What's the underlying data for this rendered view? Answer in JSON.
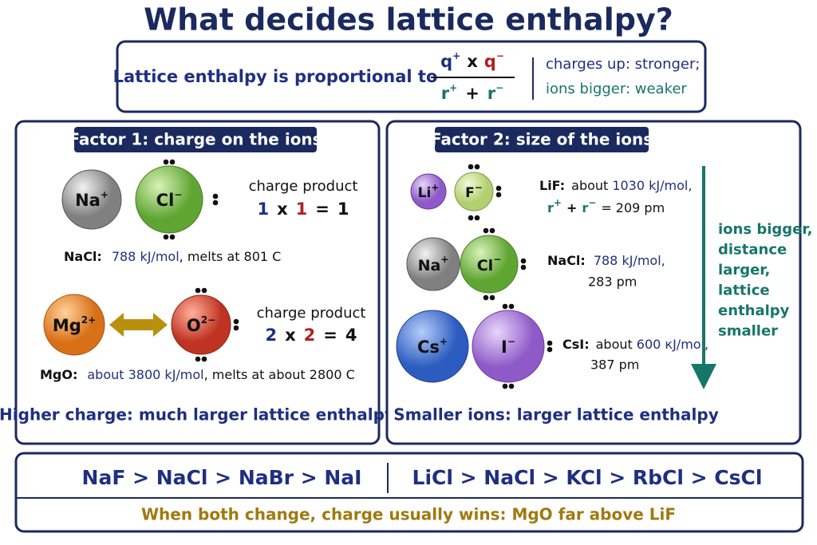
{
  "title": "What decides lattice enthalpy?",
  "formula": {
    "lead": "Lattice enthalpy is proportional to",
    "numerator": [
      "q",
      "+",
      "x",
      "q",
      "−"
    ],
    "denominator": [
      "r",
      "+",
      "+",
      "r",
      "−"
    ],
    "notes": [
      "charges up: stronger;",
      "ions bigger: weaker"
    ]
  },
  "factor1": {
    "title": "Factor 1: charge on the ions",
    "examples": [
      {
        "cation": {
          "symbol": "Na",
          "charge": "+"
        },
        "anion": {
          "symbol": "Cl",
          "charge": "−"
        },
        "caption": "charge product",
        "equation": [
          "1",
          "x",
          "1",
          "=",
          "1"
        ],
        "compound": "NaCl:",
        "enthalpy": "788 kJ/mol",
        "note": ", melts at 801 C"
      },
      {
        "cation": {
          "symbol": "Mg",
          "charge": "2+"
        },
        "anion": {
          "symbol": "O",
          "charge": "2−"
        },
        "caption": "charge product",
        "equation": [
          "2",
          "x",
          "2",
          "=",
          "4"
        ],
        "compound": "MgO:",
        "enthalpy": "about 3800 kJ/mol",
        "note": ", melts at about 2800 C"
      }
    ],
    "conclusion": "Higher charge: much larger lattice enthalpy"
  },
  "factor2": {
    "title": "Factor 2: size of the ions",
    "examples": [
      {
        "cation": {
          "symbol": "Li",
          "charge": "+"
        },
        "anion": {
          "symbol": "F",
          "charge": "−"
        },
        "compound": "LiF:",
        "prefix": "about",
        "enthalpy": "1030 kJ/mol,",
        "radius_sum": [
          "r",
          "+",
          "+",
          "r",
          "−"
        ],
        "distance": "= 209 pm"
      },
      {
        "cation": {
          "symbol": "Na",
          "charge": "+"
        },
        "anion": {
          "symbol": "Cl",
          "charge": "−"
        },
        "compound": "NaCl:",
        "enthalpy": "788 kJ/mol,",
        "distance": "283 pm"
      },
      {
        "cation": {
          "symbol": "Cs",
          "charge": "+"
        },
        "anion": {
          "symbol": "I",
          "charge": "−"
        },
        "compound": "CsI:",
        "prefix": "about",
        "enthalpy": "600 кJ/mol,",
        "distance": "387 pm"
      }
    ],
    "trend": [
      "ions bigger,",
      "distance",
      "larger,",
      "lattice",
      "enthalpy",
      "smaller"
    ],
    "conclusion": "Smaller ions: larger lattice enthalpy"
  },
  "orders": {
    "left": "NaF > NaCl > NaBr > NaI",
    "right": "LiCl > NaCl > KCl > RbCl > CsCl",
    "footer": "When both change, charge usually wins: MgO far above LiF"
  }
}
